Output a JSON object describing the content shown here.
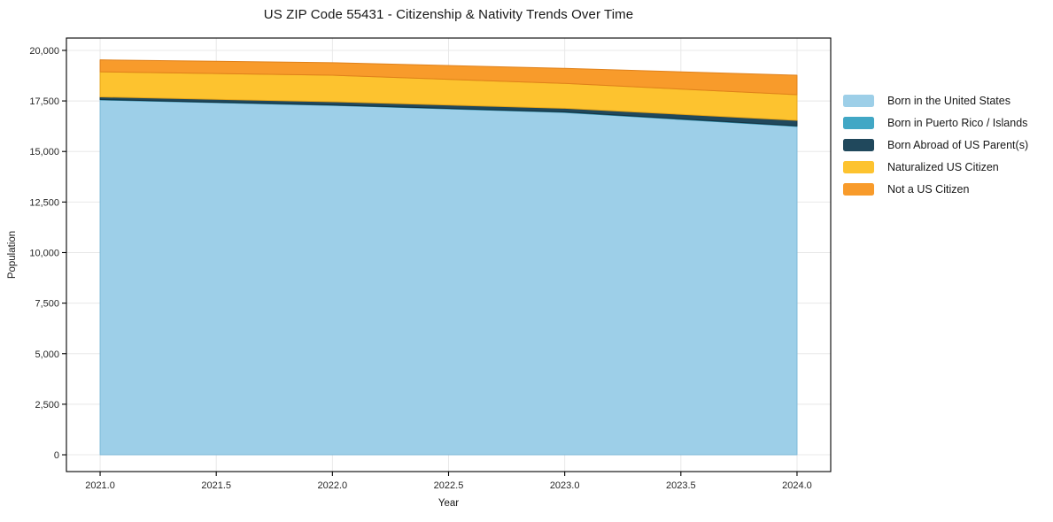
{
  "figure": {
    "background": "#ffffff",
    "grid_color": "#e8e8e8",
    "spine_color": "#000000"
  },
  "chart_data": {
    "type": "area",
    "stacked": true,
    "title": "US ZIP Code 55431 - Citizenship & Nativity Trends Over Time",
    "xlabel": "Year",
    "ylabel": "Population",
    "grid": true,
    "legend_position": "right-outside",
    "x": [
      2021,
      2022,
      2023,
      2024
    ],
    "series": [
      {
        "name": "Born in the United States",
        "color": "#9dcfe8",
        "edge": "#7fb9d8",
        "values": [
          17550,
          17280,
          16930,
          16240
        ]
      },
      {
        "name": "Born in Puerto Rico / Islands",
        "color": "#41a7c5",
        "edge": "#2b89a5",
        "values": [
          20,
          20,
          25,
          30
        ]
      },
      {
        "name": "Born Abroad of US Parent(s)",
        "color": "#20485c",
        "edge": "#16323f",
        "values": [
          130,
          160,
          180,
          270
        ]
      },
      {
        "name": "Naturalized US Citizen",
        "color": "#fdc32f",
        "edge": "#e6a51a",
        "values": [
          1240,
          1310,
          1230,
          1270
        ]
      },
      {
        "name": "Not a US Citizen",
        "color": "#f89b2b",
        "edge": "#e0811a",
        "values": [
          590,
          620,
          745,
          960
        ]
      }
    ],
    "totals": [
      19530,
      19390,
      19110,
      18770
    ],
    "xlim": [
      2020.855,
      2024.145
    ],
    "ylim": [
      -830,
      20610
    ],
    "xticks": {
      "values": [
        2021.0,
        2021.5,
        2022.0,
        2022.5,
        2023.0,
        2023.5,
        2024.0
      ],
      "labels": [
        "2021.0",
        "2021.5",
        "2022.0",
        "2022.5",
        "2023.0",
        "2023.5",
        "2024.0"
      ]
    },
    "yticks": {
      "values": [
        0,
        2500,
        5000,
        7500,
        10000,
        12500,
        15000,
        17500,
        20000
      ],
      "labels": [
        "0",
        "2,500",
        "5,000",
        "7,500",
        "10,000",
        "12,500",
        "15,000",
        "17,500",
        "20,000"
      ]
    }
  }
}
